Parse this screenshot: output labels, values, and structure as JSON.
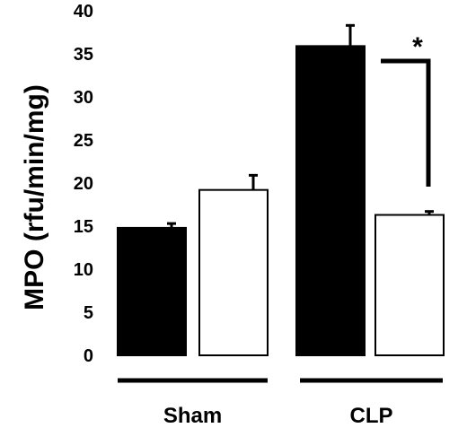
{
  "chart_data": {
    "type": "bar",
    "title": "",
    "xlabel": "",
    "ylabel": "MPO (rfu/min/mg)",
    "ylim": [
      0,
      40
    ],
    "yticks": [
      0,
      5,
      10,
      15,
      20,
      25,
      30,
      35,
      40
    ],
    "grid": false,
    "legend": "none",
    "groups": [
      "Sham",
      "CLP"
    ],
    "series": [
      {
        "fill": "#000000",
        "values": [
          14.8,
          35.9
        ],
        "errors": [
          0.5,
          2.4
        ]
      },
      {
        "fill": "#ffffff",
        "values": [
          19.2,
          16.3
        ],
        "errors": [
          1.7,
          0.4
        ]
      }
    ],
    "annotations": [
      {
        "text": "*",
        "between": "CLP black vs CLP white"
      }
    ]
  }
}
